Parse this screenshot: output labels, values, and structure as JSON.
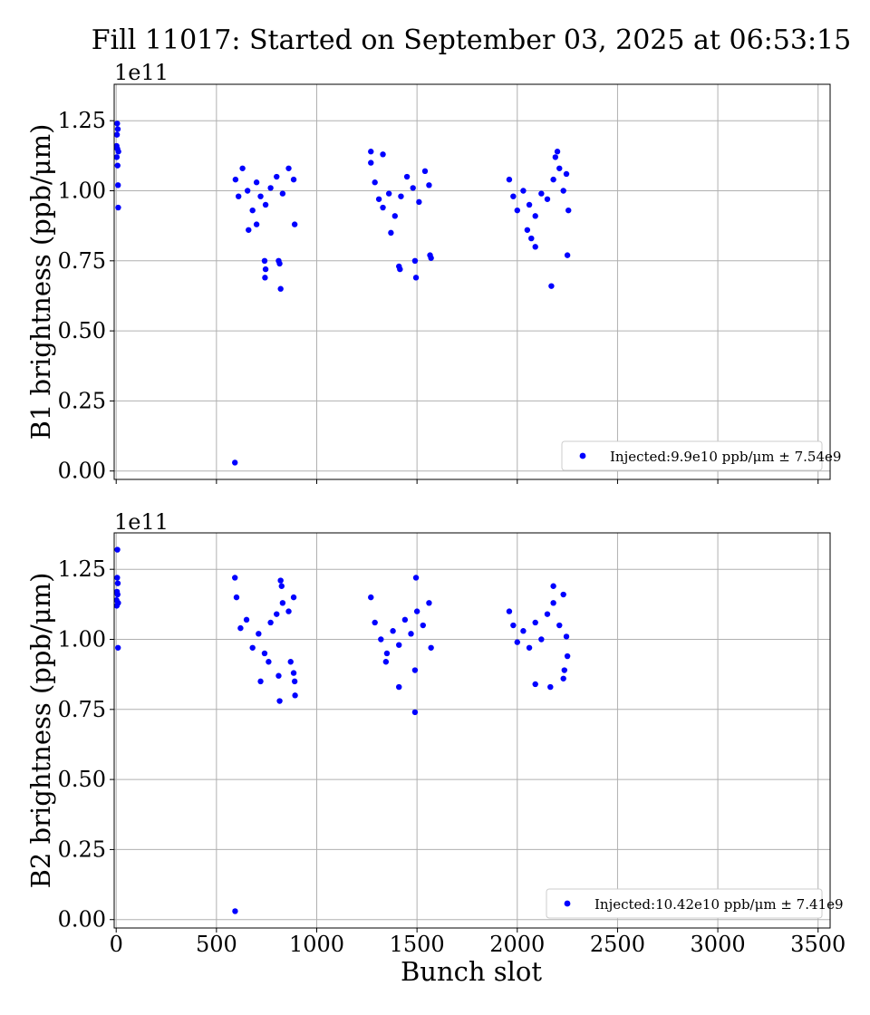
{
  "chart_data": {
    "type": "scatter",
    "title": "Fill 11017: Started on September 03, 2025 at 06:53:15",
    "xlabel": "Bunch slot",
    "xlim": [
      -10,
      3560
    ],
    "xticks": [
      0,
      500,
      1000,
      1500,
      2000,
      2500,
      3000,
      3500
    ],
    "xtick_labels": [
      "0",
      "500",
      "1000",
      "1500",
      "2000",
      "2500",
      "3000",
      "3500"
    ],
    "grid": true,
    "marker_color": "#0000ff",
    "panels": [
      {
        "name": "B1",
        "ylabel": "B1 brightness (ppb/μm)",
        "yscale_offset": "1e11",
        "ylim": [
          -0.03,
          1.38
        ],
        "yticks": [
          0.0,
          0.25,
          0.5,
          0.75,
          1.0,
          1.25
        ],
        "ytick_labels": [
          "0.00",
          "0.25",
          "0.50",
          "0.75",
          "1.00",
          "1.25"
        ],
        "legend": {
          "label": "Injected:9.9e10 ppb/μm ± 7.54e9",
          "position": "lower right"
        },
        "series": [
          {
            "points": [
              [
                2,
                1.16
              ],
              [
                3,
                1.12
              ],
              [
                4,
                1.2
              ],
              [
                5,
                1.24
              ],
              [
                6,
                1.15
              ],
              [
                7,
                1.09
              ],
              [
                8,
                1.22
              ],
              [
                9,
                1.02
              ],
              [
                10,
                0.94
              ],
              [
                11,
                1.14
              ],
              [
                592,
                0.03
              ],
              [
                595,
                1.04
              ],
              [
                610,
                0.98
              ],
              [
                630,
                1.08
              ],
              [
                655,
                1.0
              ],
              [
                680,
                0.93
              ],
              [
                700,
                1.03
              ],
              [
                720,
                0.98
              ],
              [
                745,
                0.95
              ],
              [
                770,
                1.01
              ],
              [
                800,
                1.05
              ],
              [
                830,
                0.99
              ],
              [
                860,
                1.08
              ],
              [
                885,
                1.04
              ],
              [
                740,
                0.75
              ],
              [
                745,
                0.72
              ],
              [
                742,
                0.69
              ],
              [
                810,
                0.75
              ],
              [
                815,
                0.74
              ],
              [
                820,
                0.65
              ],
              [
                890,
                0.88
              ],
              [
                660,
                0.86
              ],
              [
                700,
                0.88
              ],
              [
                1270,
                1.1
              ],
              [
                1290,
                1.03
              ],
              [
                1310,
                0.97
              ],
              [
                1330,
                0.94
              ],
              [
                1360,
                0.99
              ],
              [
                1390,
                0.91
              ],
              [
                1420,
                0.98
              ],
              [
                1450,
                1.05
              ],
              [
                1480,
                1.01
              ],
              [
                1510,
                0.96
              ],
              [
                1540,
                1.07
              ],
              [
                1560,
                1.02
              ],
              [
                1270,
                1.14
              ],
              [
                1330,
                1.13
              ],
              [
                1410,
                0.73
              ],
              [
                1415,
                0.72
              ],
              [
                1490,
                0.75
              ],
              [
                1495,
                0.69
              ],
              [
                1565,
                0.77
              ],
              [
                1570,
                0.76
              ],
              [
                1370,
                0.85
              ],
              [
                1960,
                1.04
              ],
              [
                1980,
                0.98
              ],
              [
                2000,
                0.93
              ],
              [
                2030,
                1.0
              ],
              [
                2060,
                0.95
              ],
              [
                2090,
                0.91
              ],
              [
                2120,
                0.99
              ],
              [
                2150,
                0.97
              ],
              [
                2180,
                1.04
              ],
              [
                2210,
                1.08
              ],
              [
                2230,
                1.0
              ],
              [
                2245,
                1.06
              ],
              [
                2190,
                1.12
              ],
              [
                2200,
                1.14
              ],
              [
                2170,
                0.66
              ],
              [
                2250,
                0.77
              ],
              [
                2090,
                0.8
              ],
              [
                2070,
                0.83
              ],
              [
                2050,
                0.86
              ],
              [
                2255,
                0.93
              ]
            ]
          }
        ]
      },
      {
        "name": "B2",
        "ylabel": "B2 brightness (ppb/μm)",
        "yscale_offset": "1e11",
        "ylim": [
          -0.03,
          1.38
        ],
        "yticks": [
          0.0,
          0.25,
          0.5,
          0.75,
          1.0,
          1.25
        ],
        "ytick_labels": [
          "0.00",
          "0.25",
          "0.50",
          "0.75",
          "1.00",
          "1.25"
        ],
        "legend": {
          "label": "Injected:10.42e10 ppb/μm ± 7.41e9",
          "position": "lower right"
        },
        "series": [
          {
            "points": [
              [
                2,
                1.14
              ],
              [
                3,
                1.12
              ],
              [
                4,
                1.17
              ],
              [
                5,
                1.22
              ],
              [
                6,
                1.32
              ],
              [
                7,
                1.16
              ],
              [
                8,
                1.2
              ],
              [
                9,
                0.97
              ],
              [
                10,
                1.13
              ],
              [
                593,
                0.03
              ],
              [
                592,
                1.22
              ],
              [
                600,
                1.15
              ],
              [
                620,
                1.04
              ],
              [
                650,
                1.07
              ],
              [
                680,
                0.97
              ],
              [
                710,
                1.02
              ],
              [
                740,
                0.95
              ],
              [
                770,
                1.06
              ],
              [
                800,
                1.09
              ],
              [
                830,
                1.13
              ],
              [
                860,
                1.1
              ],
              [
                885,
                1.15
              ],
              [
                720,
                0.85
              ],
              [
                760,
                0.92
              ],
              [
                810,
                0.87
              ],
              [
                815,
                0.78
              ],
              [
                870,
                0.92
              ],
              [
                885,
                0.88
              ],
              [
                890,
                0.85
              ],
              [
                892,
                0.8
              ],
              [
                820,
                1.21
              ],
              [
                825,
                1.19
              ],
              [
                1270,
                1.15
              ],
              [
                1290,
                1.06
              ],
              [
                1320,
                1.0
              ],
              [
                1350,
                0.95
              ],
              [
                1380,
                1.03
              ],
              [
                1410,
                0.98
              ],
              [
                1440,
                1.07
              ],
              [
                1470,
                1.02
              ],
              [
                1500,
                1.1
              ],
              [
                1530,
                1.05
              ],
              [
                1560,
                1.13
              ],
              [
                1570,
                0.97
              ],
              [
                1495,
                1.22
              ],
              [
                1490,
                0.74
              ],
              [
                1410,
                0.83
              ],
              [
                1490,
                0.89
              ],
              [
                1345,
                0.92
              ],
              [
                1960,
                1.1
              ],
              [
                1980,
                1.05
              ],
              [
                2000,
                0.99
              ],
              [
                2030,
                1.03
              ],
              [
                2060,
                0.97
              ],
              [
                2090,
                1.06
              ],
              [
                2120,
                1.0
              ],
              [
                2150,
                1.09
              ],
              [
                2180,
                1.13
              ],
              [
                2210,
                1.05
              ],
              [
                2230,
                1.16
              ],
              [
                2245,
                1.01
              ],
              [
                2090,
                0.84
              ],
              [
                2165,
                0.83
              ],
              [
                2230,
                0.86
              ],
              [
                2235,
                0.89
              ],
              [
                2250,
                0.94
              ],
              [
                2180,
                1.19
              ]
            ]
          }
        ]
      }
    ]
  }
}
